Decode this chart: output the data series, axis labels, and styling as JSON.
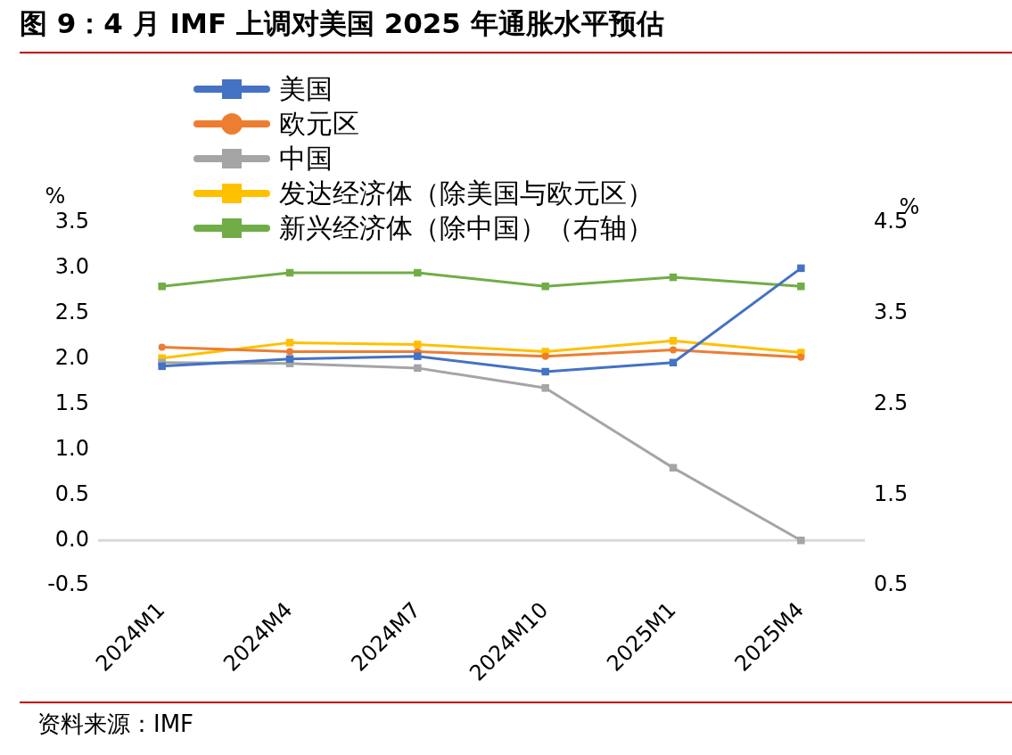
{
  "chart_data": {
    "type": "line",
    "title": "图 9：4 月 IMF 上调对美国 2025 年通胀水平预估",
    "categories": [
      "2024M1",
      "2024M4",
      "2024M7",
      "2024M10",
      "2025M1",
      "2025M4"
    ],
    "series": [
      {
        "name": "美国",
        "color": "#4472c4",
        "marker": "square",
        "values": [
          1.92,
          2.0,
          2.03,
          1.86,
          1.96,
          3.0
        ]
      },
      {
        "name": "欧元区",
        "color": "#ed7d31",
        "marker": "circle",
        "values": [
          2.13,
          2.08,
          2.08,
          2.03,
          2.1,
          2.02
        ]
      },
      {
        "name": "中国",
        "color": "#a5a5a5",
        "marker": "square",
        "values": [
          1.96,
          1.95,
          1.9,
          1.68,
          0.8,
          0.0
        ]
      },
      {
        "name": "发达经济体（除美国与欧元区）",
        "color": "#ffc000",
        "marker": "square",
        "values": [
          2.01,
          2.18,
          2.16,
          2.08,
          2.2,
          2.07
        ]
      },
      {
        "name": "新兴经济体（除中国）（右轴）",
        "color": "#70ad47",
        "marker": "square",
        "axis": "y2",
        "values": [
          3.8,
          3.95,
          3.95,
          3.8,
          3.9,
          3.8
        ]
      }
    ],
    "ylabel": "%",
    "y2label": "%",
    "ylim": [
      -0.5,
      3.5
    ],
    "yticks": [
      -0.5,
      {
        "value": 0,
        "label": "0.0"
      },
      0.5,
      {
        "value": 1,
        "label": "1.0"
      },
      1.5,
      {
        "value": 2,
        "label": "2.0"
      },
      2.5,
      {
        "value": 3,
        "label": "3.0"
      },
      3.5
    ],
    "y2lim": [
      0.5,
      4.5
    ],
    "y2ticks": [
      0.5,
      1.5,
      2.5,
      3.5,
      4.5
    ],
    "ref_lines": [
      {
        "axis": "y",
        "value": 0,
        "color": "#d9d9d9"
      }
    ],
    "legend": "top left",
    "annotations": [
      "资料来源：IMF"
    ]
  }
}
